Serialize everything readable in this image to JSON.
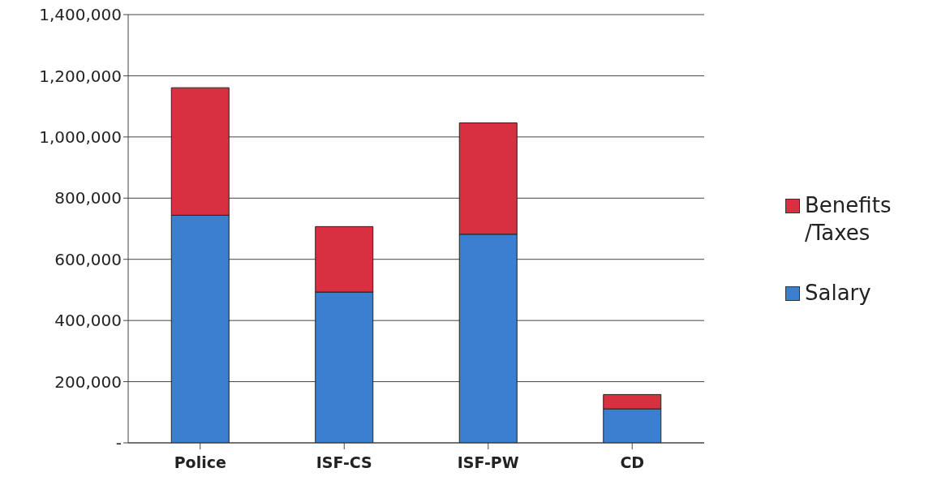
{
  "chart_data": {
    "type": "bar",
    "stacked": true,
    "categories": [
      "Police",
      "ISF-CS",
      "ISF-PW",
      "CD"
    ],
    "series": [
      {
        "name": "Salary",
        "color": "#3a7fd0",
        "values": [
          744000,
          493000,
          682000,
          111000
        ]
      },
      {
        "name": "Benefits/Taxes",
        "color": "#d83040",
        "values": [
          417000,
          214000,
          364000,
          47000
        ]
      }
    ],
    "ylim": [
      0,
      1400000
    ],
    "yticks": [
      {
        "value": 0,
        "label": "-"
      },
      {
        "value": 200000,
        "label": "200,000"
      },
      {
        "value": 400000,
        "label": "400,000"
      },
      {
        "value": 600000,
        "label": "600,000"
      },
      {
        "value": 800000,
        "label": "800,000"
      },
      {
        "value": 1000000,
        "label": "1,000,000"
      },
      {
        "value": 1200000,
        "label": "1,200,000"
      },
      {
        "value": 1400000,
        "label": "1,400,000"
      }
    ],
    "grid": "y",
    "legend": "right"
  }
}
